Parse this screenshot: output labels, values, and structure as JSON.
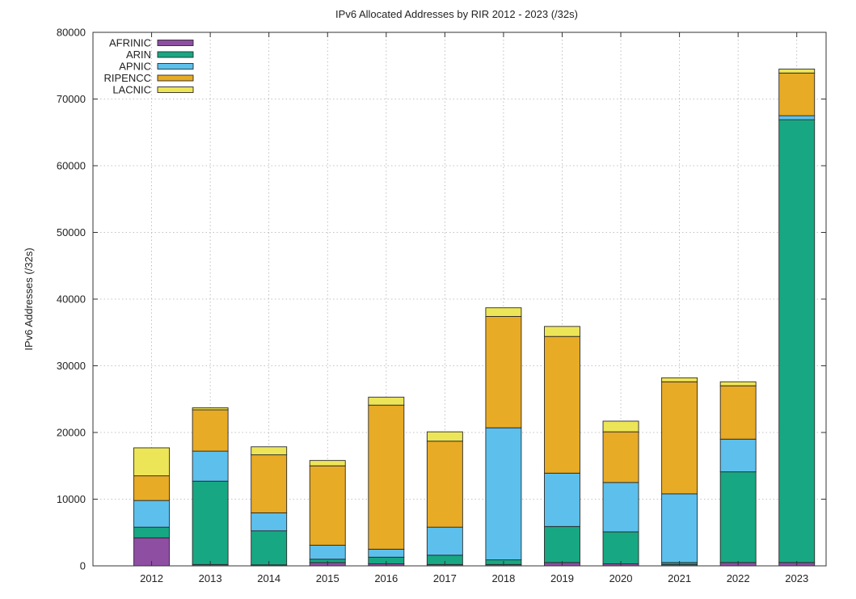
{
  "chart_data": {
    "type": "bar",
    "stacked": true,
    "title": "IPv6 Allocated Addresses by RIR 2012 - 2023 (/32s)",
    "xlabel": "",
    "ylabel": "IPv6 Addresses (/32s)",
    "ylim": [
      0,
      80000
    ],
    "yticks": [
      "0",
      "10000",
      "20000",
      "30000",
      "40000",
      "50000",
      "60000",
      "70000",
      "80000"
    ],
    "grid": true,
    "legend_position": "top-left",
    "categories": [
      "2012",
      "2013",
      "2014",
      "2015",
      "2016",
      "2017",
      "2018",
      "2019",
      "2020",
      "2021",
      "2022",
      "2023"
    ],
    "series": [
      {
        "name": "AFRINIC",
        "color": "#8e4fa2",
        "values": [
          4200,
          200,
          150,
          500,
          300,
          200,
          200,
          500,
          300,
          200,
          500,
          500
        ]
      },
      {
        "name": "ARIN",
        "color": "#17a883",
        "values": [
          1600,
          12500,
          5100,
          500,
          1000,
          1400,
          700,
          5400,
          4800,
          300,
          13600,
          66400
        ]
      },
      {
        "name": "APNIC",
        "color": "#5dc0ec",
        "values": [
          4000,
          4500,
          2700,
          2100,
          1200,
          4200,
          19800,
          8000,
          7400,
          10300,
          4900,
          600
        ]
      },
      {
        "name": "RIPENCC",
        "color": "#e8ab25",
        "values": [
          3700,
          6200,
          8700,
          11900,
          21600,
          12900,
          16700,
          20500,
          7600,
          16800,
          8000,
          6400
        ]
      },
      {
        "name": "LACNIC",
        "color": "#ede558",
        "values": [
          4200,
          300,
          1200,
          800,
          1200,
          1400,
          1300,
          1500,
          1600,
          600,
          600,
          600
        ]
      }
    ]
  }
}
